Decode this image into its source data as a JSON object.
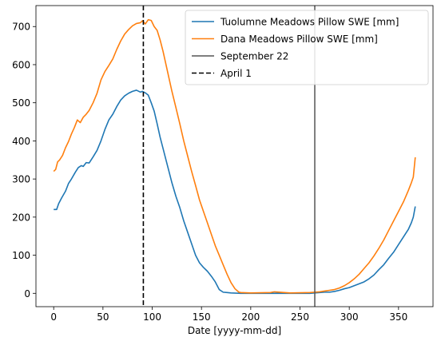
{
  "chart_data": {
    "type": "line",
    "title": "",
    "xlabel": "Date [yyyy-mm-dd]",
    "ylabel": "",
    "xlim": [
      -18,
      385
    ],
    "ylim": [
      -35,
      755
    ],
    "xticks": [
      0,
      50,
      100,
      150,
      200,
      250,
      300,
      350
    ],
    "yticks": [
      0,
      100,
      200,
      300,
      400,
      500,
      600,
      700
    ],
    "grid": false,
    "legend_position": "top-right",
    "series": [
      {
        "name": "Tuolumne Meadows Pillow SWE [mm]",
        "color": "#1f77b4",
        "x": [
          0,
          3,
          5,
          8,
          12,
          15,
          18,
          22,
          25,
          28,
          30,
          33,
          36,
          40,
          44,
          48,
          52,
          56,
          60,
          64,
          68,
          72,
          76,
          80,
          84,
          88,
          90,
          93,
          96,
          99,
          102,
          105,
          108,
          111,
          114,
          117,
          120,
          124,
          128,
          132,
          136,
          140,
          144,
          148,
          152,
          156,
          160,
          164,
          168,
          172,
          176,
          180,
          190,
          200,
          220,
          240,
          260,
          265,
          270,
          275,
          280,
          285,
          290,
          295,
          300,
          305,
          310,
          315,
          320,
          325,
          330,
          335,
          340,
          345,
          350,
          355,
          360,
          363,
          365,
          367
        ],
        "y": [
          220,
          220,
          235,
          250,
          268,
          288,
          300,
          318,
          330,
          335,
          333,
          343,
          342,
          358,
          375,
          400,
          430,
          455,
          470,
          490,
          507,
          518,
          525,
          530,
          533,
          528,
          530,
          526,
          520,
          500,
          478,
          445,
          410,
          380,
          350,
          320,
          290,
          255,
          225,
          190,
          160,
          130,
          100,
          80,
          68,
          58,
          45,
          30,
          10,
          3,
          2,
          1,
          0,
          0,
          0,
          0,
          0,
          1,
          2,
          3,
          3,
          5,
          8,
          12,
          15,
          20,
          25,
          30,
          38,
          48,
          62,
          75,
          92,
          108,
          128,
          148,
          168,
          185,
          200,
          228
        ]
      },
      {
        "name": "Dana Meadows Pillow SWE [mm]",
        "color": "#ff7f0e",
        "x": [
          0,
          2,
          4,
          6,
          9,
          12,
          15,
          18,
          21,
          24,
          27,
          30,
          33,
          36,
          40,
          44,
          48,
          52,
          56,
          60,
          64,
          68,
          72,
          76,
          80,
          84,
          88,
          90,
          93,
          96,
          99,
          102,
          105,
          108,
          111,
          114,
          117,
          120,
          124,
          128,
          132,
          136,
          140,
          144,
          148,
          152,
          156,
          160,
          164,
          168,
          172,
          176,
          180,
          184,
          188,
          190,
          200,
          220,
          224,
          240,
          260,
          265,
          270,
          275,
          280,
          285,
          290,
          295,
          300,
          305,
          310,
          315,
          320,
          325,
          330,
          335,
          340,
          345,
          350,
          355,
          360,
          363,
          365,
          367
        ],
        "y": [
          320,
          325,
          345,
          350,
          362,
          382,
          398,
          418,
          435,
          455,
          448,
          462,
          470,
          480,
          500,
          525,
          560,
          582,
          598,
          615,
          640,
          662,
          680,
          692,
          702,
          708,
          710,
          715,
          707,
          718,
          716,
          700,
          690,
          665,
          635,
          600,
          565,
          530,
          488,
          445,
          400,
          360,
          320,
          283,
          245,
          215,
          185,
          155,
          125,
          100,
          75,
          50,
          28,
          12,
          3,
          2,
          1,
          2,
          4,
          1,
          2,
          3,
          4,
          6,
          8,
          10,
          14,
          20,
          28,
          38,
          50,
          65,
          80,
          98,
          118,
          140,
          165,
          190,
          215,
          240,
          270,
          290,
          305,
          357
        ]
      }
    ],
    "vlines": [
      {
        "name": "September 22",
        "x": 265,
        "color": "#555555",
        "style": "solid"
      },
      {
        "name": "April 1",
        "x": 91,
        "color": "#000000",
        "style": "dashed"
      }
    ]
  }
}
